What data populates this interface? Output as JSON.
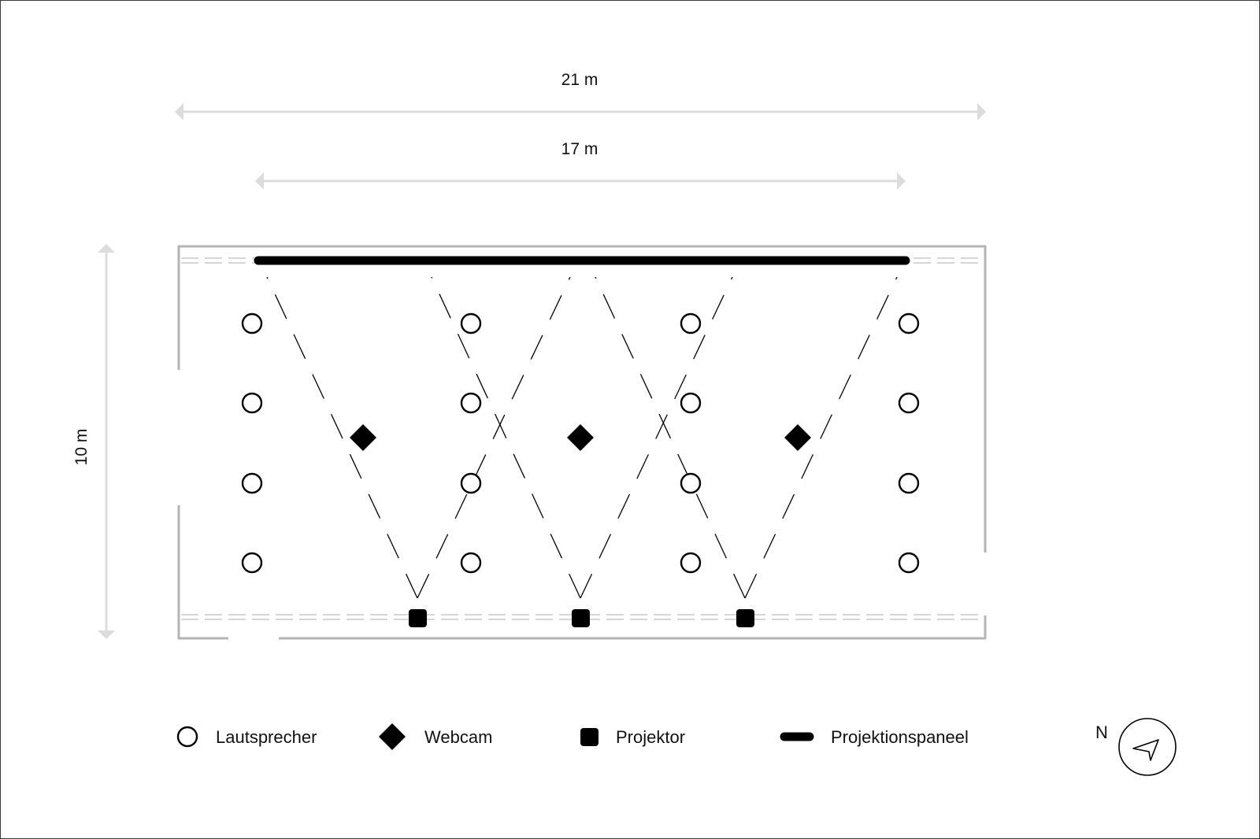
{
  "dimensions": {
    "outer_width": "21 m",
    "inner_width": "17 m",
    "height": "10 m"
  },
  "legend": [
    {
      "key": "speaker",
      "symbol": "circle-icon",
      "label": "Lautsprecher"
    },
    {
      "key": "webcam",
      "symbol": "diamond-icon",
      "label": "Webcam"
    },
    {
      "key": "projector",
      "symbol": "square-icon",
      "label": "Projektor"
    },
    {
      "key": "panel",
      "symbol": "bar-icon",
      "label": "Projektionspaneel"
    }
  ],
  "compass": {
    "label": "N",
    "icon": "compass-arrow-icon"
  },
  "counts": {
    "speakers": 16,
    "webcams": 3,
    "projectors": 3
  },
  "colors": {
    "symbol": "#000000",
    "wall": "#b4b4b4",
    "dimension": "#dcdcdc",
    "frame": "#3a3a3a"
  }
}
